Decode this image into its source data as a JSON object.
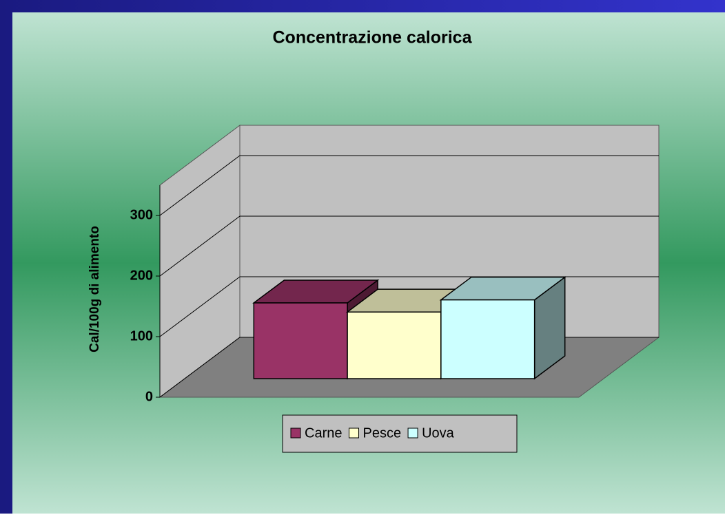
{
  "chart_data": {
    "type": "bar3d",
    "title": "Concentrazione calorica",
    "y_label": "Cal/100g di alimento",
    "categories": [
      null
    ],
    "series": [
      {
        "name": "Carne",
        "color": "#993366",
        "values": [
          125
        ]
      },
      {
        "name": "Pesce",
        "color": "#ffffcc",
        "values": [
          110
        ]
      },
      {
        "name": "Uova",
        "color": "#ccffff",
        "values": [
          130
        ]
      }
    ],
    "ylim": [
      0,
      350
    ],
    "yticks": [
      0,
      100,
      200,
      300
    ],
    "grid": true,
    "legend": "bottom"
  }
}
